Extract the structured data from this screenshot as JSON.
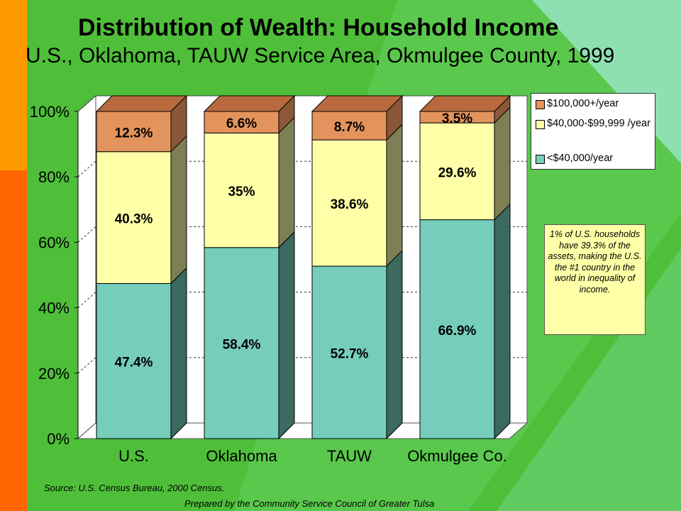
{
  "title": "Distribution of Wealth: Household Income",
  "subtitle": "U.S., Oklahoma, TAUW Service Area, Okmulgee County, 1999",
  "source": "Source:  U.S. Census Bureau, 2000 Census.",
  "credit": "Prepared by the Community Service Council of Greater Tulsa",
  "note": "1% of U.S. households have 39.3% of the assets, making the U.S. the #1 country in the world in inequality of income.",
  "colors": {
    "low": "#76cdbb",
    "mid": "#ffffa8",
    "high": "#e3945c",
    "background": "#4fbf3a"
  },
  "chart_data": {
    "type": "bar",
    "stacked": true,
    "title": "Distribution of Wealth: Household Income",
    "subtitle": "U.S., Oklahoma, TAUW Service Area, Okmulgee County, 1999",
    "categories": [
      "U.S.",
      "Oklahoma",
      "TAUW",
      "Okmulgee Co."
    ],
    "series": [
      {
        "name": "<$40,000/year",
        "values": [
          47.4,
          58.4,
          52.7,
          66.9
        ],
        "labels": [
          "47.4%",
          "58.4%",
          "52.7%",
          "66.9%"
        ]
      },
      {
        "name": "$40,000-$99,999 /year",
        "values": [
          40.3,
          35,
          38.6,
          29.6
        ],
        "labels": [
          "40.3%",
          "35%",
          "38.6%",
          "29.6%"
        ]
      },
      {
        "name": "$100,000+/year",
        "values": [
          12.3,
          6.6,
          8.7,
          3.5
        ],
        "labels": [
          "12.3%",
          "6.6%",
          "8.7%",
          "3.5%"
        ]
      }
    ],
    "yticks": [
      "0%",
      "20%",
      "40%",
      "60%",
      "80%",
      "100%"
    ],
    "ylim": [
      0,
      100
    ],
    "grid": true,
    "legend": "top-right",
    "legend_entries": [
      "$100,000+/year",
      "$40,000-$99,999 /year",
      "<$40,000/year"
    ]
  }
}
